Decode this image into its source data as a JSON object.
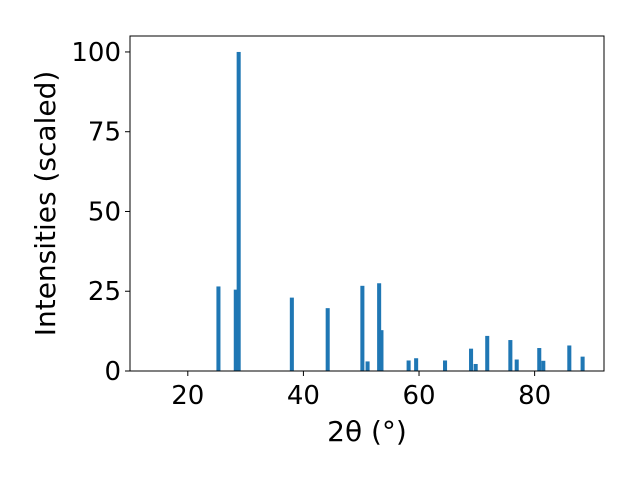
{
  "chart_data": {
    "type": "bar",
    "title": "",
    "xlabel": "2θ (°)",
    "ylabel": "Intensities (scaled)",
    "xlim": [
      10,
      92
    ],
    "ylim": [
      0,
      105
    ],
    "xticks": [
      20,
      40,
      60,
      80
    ],
    "yticks": [
      0,
      25,
      50,
      75,
      100
    ],
    "grid": false,
    "bar_color": "#1f77b4",
    "bar_width": 0.7,
    "x": [
      25.3,
      28.3,
      28.8,
      38.0,
      44.2,
      50.2,
      51.1,
      53.1,
      53.5,
      58.2,
      59.5,
      64.5,
      69.0,
      69.8,
      71.8,
      75.8,
      76.9,
      80.8,
      81.5,
      86.0,
      88.3
    ],
    "values": [
      26.5,
      25.5,
      100,
      23,
      19.7,
      26.7,
      3,
      27.5,
      12.8,
      3.3,
      4,
      3.3,
      7,
      2.2,
      11,
      9.7,
      3.6,
      7.2,
      3.2,
      8,
      4.5
    ]
  }
}
